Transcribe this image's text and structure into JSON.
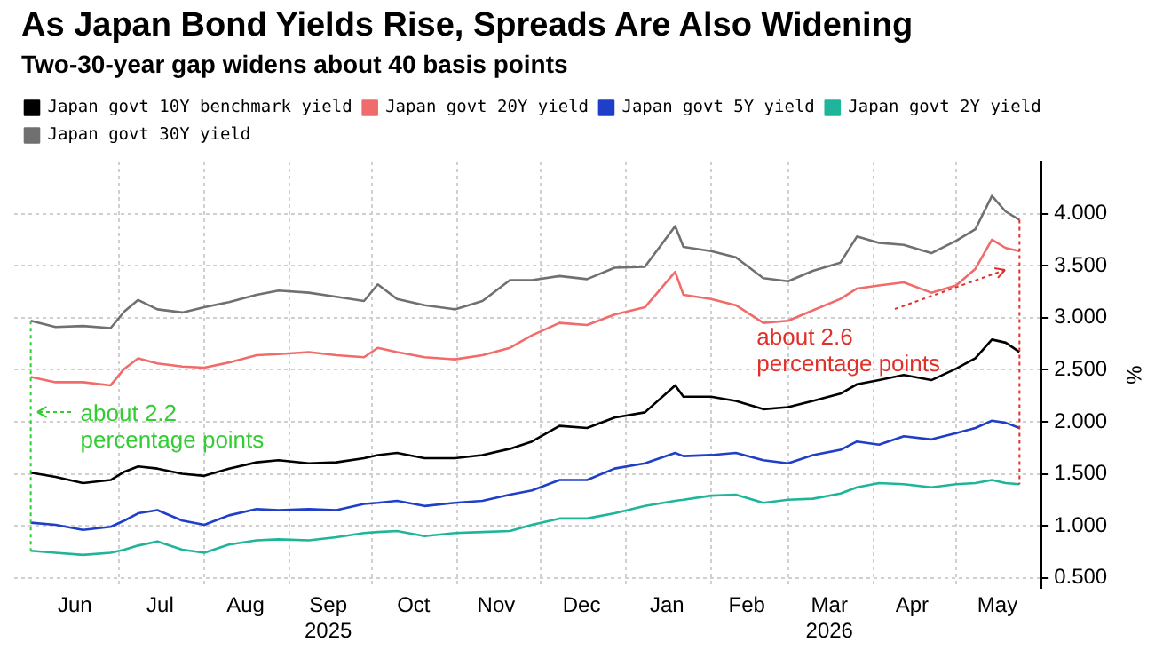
{
  "chart_data": {
    "type": "line",
    "title": "As Japan Bond Yields Rise, Spreads Are Also Widening",
    "subtitle": "Two-30-year gap widens about 40 basis points",
    "ylabel": "%",
    "x": [
      "2025-05-30",
      "2025-06-08",
      "2025-06-18",
      "2025-06-28",
      "2025-07-03",
      "2025-07-08",
      "2025-07-15",
      "2025-07-24",
      "2025-08-01",
      "2025-08-10",
      "2025-08-20",
      "2025-08-28",
      "2025-09-08",
      "2025-09-18",
      "2025-09-28",
      "2025-10-03",
      "2025-10-10",
      "2025-10-20",
      "2025-10-31",
      "2025-11-10",
      "2025-11-20",
      "2025-11-28",
      "2025-12-08",
      "2025-12-18",
      "2025-12-28",
      "2026-01-08",
      "2026-01-19",
      "2026-01-22",
      "2026-02-01",
      "2026-02-10",
      "2026-02-20",
      "2026-03-01",
      "2026-03-10",
      "2026-03-20",
      "2026-03-26",
      "2026-04-03",
      "2026-04-12",
      "2026-04-22",
      "2026-05-01",
      "2026-05-08",
      "2026-05-14",
      "2026-05-19",
      "2026-05-24"
    ],
    "series": [
      {
        "name": "Japan govt 10Y benchmark yield",
        "color": "#000000",
        "values": [
          1.51,
          1.47,
          1.41,
          1.44,
          1.52,
          1.57,
          1.55,
          1.5,
          1.48,
          1.55,
          1.61,
          1.63,
          1.6,
          1.61,
          1.65,
          1.68,
          1.7,
          1.65,
          1.65,
          1.68,
          1.74,
          1.81,
          1.96,
          1.94,
          2.04,
          2.09,
          2.35,
          2.24,
          2.24,
          2.2,
          2.12,
          2.14,
          2.2,
          2.27,
          2.36,
          2.4,
          2.45,
          2.4,
          2.51,
          2.61,
          2.79,
          2.76,
          2.67
        ]
      },
      {
        "name": "Japan govt 20Y yield",
        "color": "#f26b6b",
        "values": [
          2.43,
          2.38,
          2.38,
          2.35,
          2.51,
          2.61,
          2.56,
          2.53,
          2.52,
          2.57,
          2.64,
          2.65,
          2.67,
          2.64,
          2.62,
          2.71,
          2.67,
          2.62,
          2.6,
          2.64,
          2.71,
          2.83,
          2.95,
          2.93,
          3.03,
          3.1,
          3.44,
          3.22,
          3.18,
          3.12,
          2.95,
          2.97,
          3.07,
          3.18,
          3.28,
          3.31,
          3.34,
          3.24,
          3.31,
          3.47,
          3.75,
          3.67,
          3.64
        ]
      },
      {
        "name": "Japan govt 5Y yield",
        "color": "#1f3fc8",
        "values": [
          1.03,
          1.01,
          0.96,
          0.99,
          1.05,
          1.12,
          1.15,
          1.05,
          1.01,
          1.1,
          1.16,
          1.15,
          1.16,
          1.15,
          1.21,
          1.22,
          1.24,
          1.19,
          1.22,
          1.24,
          1.3,
          1.34,
          1.44,
          1.44,
          1.55,
          1.6,
          1.7,
          1.67,
          1.68,
          1.7,
          1.63,
          1.6,
          1.68,
          1.73,
          1.81,
          1.78,
          1.86,
          1.83,
          1.89,
          1.94,
          2.01,
          1.99,
          1.94
        ]
      },
      {
        "name": "Japan govt 2Y yield",
        "color": "#1fb59a",
        "values": [
          0.76,
          0.74,
          0.72,
          0.74,
          0.77,
          0.81,
          0.85,
          0.77,
          0.74,
          0.82,
          0.86,
          0.87,
          0.86,
          0.89,
          0.93,
          0.94,
          0.95,
          0.9,
          0.93,
          0.94,
          0.95,
          1.01,
          1.07,
          1.07,
          1.12,
          1.19,
          1.24,
          1.25,
          1.29,
          1.3,
          1.22,
          1.25,
          1.26,
          1.31,
          1.37,
          1.41,
          1.4,
          1.37,
          1.4,
          1.41,
          1.44,
          1.41,
          1.4
        ]
      },
      {
        "name": "Japan govt 30Y yield",
        "color": "#707070",
        "values": [
          2.97,
          2.91,
          2.92,
          2.9,
          3.06,
          3.17,
          3.08,
          3.05,
          3.1,
          3.15,
          3.22,
          3.26,
          3.24,
          3.2,
          3.16,
          3.32,
          3.18,
          3.12,
          3.08,
          3.16,
          3.36,
          3.36,
          3.4,
          3.37,
          3.48,
          3.49,
          3.88,
          3.68,
          3.64,
          3.58,
          3.38,
          3.35,
          3.45,
          3.53,
          3.78,
          3.72,
          3.7,
          3.62,
          3.74,
          3.85,
          4.17,
          4.02,
          3.94
        ]
      }
    ],
    "xlim": [
      "2025-05-24",
      "2026-06-01"
    ],
    "xticks": [
      {
        "value": "2025-06-15",
        "label": "Jun"
      },
      {
        "value": "2025-07-01",
        "label": null
      },
      {
        "value": "2025-07-16",
        "label": "Jul"
      },
      {
        "value": "2025-08-01",
        "label": null
      },
      {
        "value": "2025-08-16",
        "label": "Aug"
      },
      {
        "value": "2025-09-01",
        "label": null
      },
      {
        "value": "2025-09-15",
        "label": "Sep\n2025"
      },
      {
        "value": "2025-10-01",
        "label": null
      },
      {
        "value": "2025-10-16",
        "label": "Oct"
      },
      {
        "value": "2025-11-01",
        "label": null
      },
      {
        "value": "2025-11-15",
        "label": "Nov"
      },
      {
        "value": "2025-12-01",
        "label": null
      },
      {
        "value": "2025-12-16",
        "label": "Dec"
      },
      {
        "value": "2026-01-01",
        "label": null
      },
      {
        "value": "2026-01-16",
        "label": "Jan"
      },
      {
        "value": "2026-02-01",
        "label": null
      },
      {
        "value": "2026-02-14",
        "label": "Feb"
      },
      {
        "value": "2026-03-01",
        "label": null
      },
      {
        "value": "2026-03-16",
        "label": "Mar\n2026"
      },
      {
        "value": "2026-04-01",
        "label": null
      },
      {
        "value": "2026-04-15",
        "label": "Apr"
      },
      {
        "value": "2026-05-01",
        "label": null
      },
      {
        "value": "2026-05-16",
        "label": "May"
      }
    ],
    "ylim": [
      0.4,
      4.5
    ],
    "yticks": [
      {
        "value": 0.5,
        "label": "0.500"
      },
      {
        "value": 1,
        "label": "1.000"
      },
      {
        "value": 1.5,
        "label": "1.500"
      },
      {
        "value": 2,
        "label": "2.000"
      },
      {
        "value": 2.5,
        "label": "2.500"
      },
      {
        "value": 3,
        "label": "3.000"
      },
      {
        "value": 3.5,
        "label": "3.500"
      },
      {
        "value": 4,
        "label": "4.000"
      }
    ],
    "grid": true,
    "legend": "top left",
    "marker": "none",
    "line_style": "solid",
    "ref_lines": [
      {
        "axis": "x",
        "value": "2025-05-30",
        "label": "about 2.2\npercentage points",
        "color": "#33cc33",
        "line_style": "dotted"
      },
      {
        "axis": "x",
        "value": "2026-05-24",
        "label": "about 2.6\npercentage points",
        "color": "#e0302a",
        "line_style": "dotted"
      }
    ]
  }
}
